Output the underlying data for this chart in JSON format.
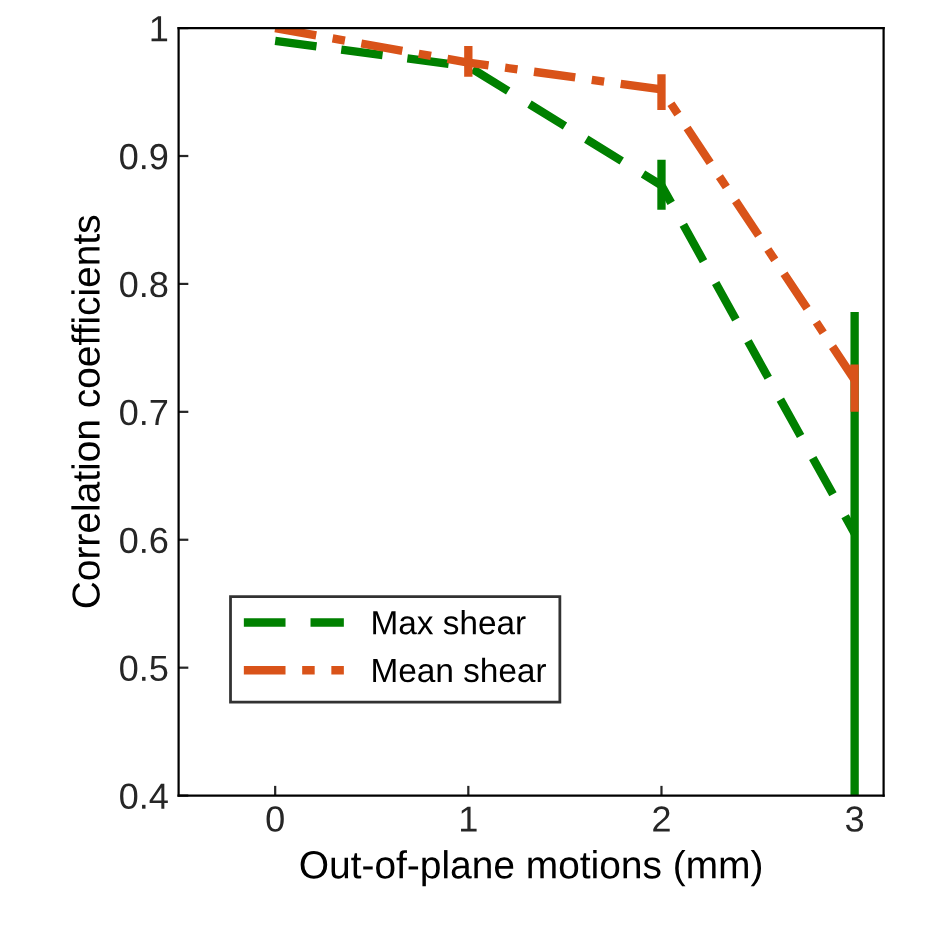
{
  "chart_data": {
    "type": "line",
    "xlabel": "Out-of-plane motions (mm)",
    "ylabel": "Correlation coefficients",
    "x": [
      0,
      1,
      2,
      3
    ],
    "series": [
      {
        "name": "Max shear",
        "color": "#008000",
        "line_style": "dashed",
        "values": [
          0.99,
          0.97,
          0.877,
          0.605
        ],
        "errors": [
          null,
          null,
          [
            0.858,
            0.897
          ],
          [
            0.4,
            0.778
          ]
        ]
      },
      {
        "name": "Mean shear",
        "color": "#d95319",
        "line_style": "dashdot",
        "values": [
          1.0,
          0.973,
          0.952,
          0.725
        ],
        "errors": [
          null,
          [
            0.962,
            0.986
          ],
          [
            0.936,
            0.964
          ],
          [
            0.7,
            0.737
          ]
        ]
      }
    ],
    "xlim": [
      -0.5,
      3.15
    ],
    "xticks": [
      0,
      1,
      2,
      3
    ],
    "ylim": [
      0.4,
      1
    ],
    "yticks": [
      0.4,
      0.5,
      0.6,
      0.7,
      0.8,
      0.9,
      1
    ],
    "grid": false,
    "legend": "bottom left",
    "marker": "none"
  }
}
